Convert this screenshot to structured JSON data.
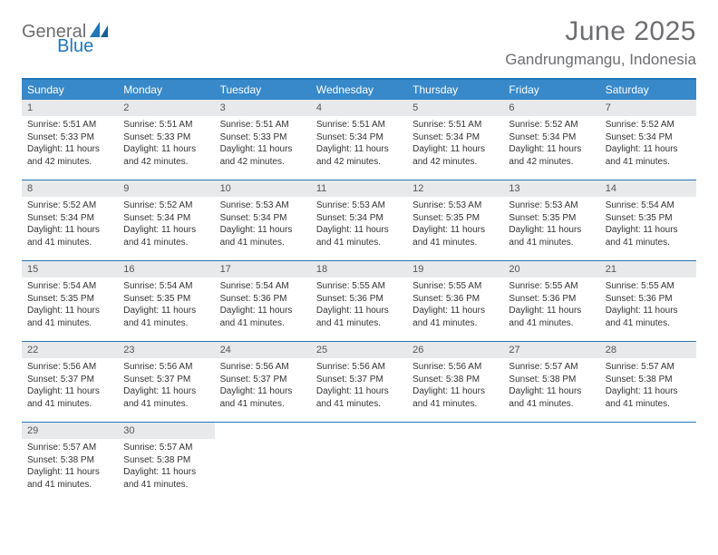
{
  "logo": {
    "part1": "General",
    "part2": "Blue"
  },
  "title": "June 2025",
  "location": "Gandrungmangu, Indonesia",
  "colors": {
    "header_bg": "#3789c9",
    "rule": "#2176b8",
    "daynum_bg": "#e8e9ea",
    "text_muted": "#6d6e71",
    "text_body": "#333333",
    "page_bg": "#ffffff"
  },
  "weekdays": [
    "Sunday",
    "Monday",
    "Tuesday",
    "Wednesday",
    "Thursday",
    "Friday",
    "Saturday"
  ],
  "days": [
    {
      "n": "1",
      "sunrise": "5:51 AM",
      "sunset": "5:33 PM",
      "daylight": "11 hours and 42 minutes."
    },
    {
      "n": "2",
      "sunrise": "5:51 AM",
      "sunset": "5:33 PM",
      "daylight": "11 hours and 42 minutes."
    },
    {
      "n": "3",
      "sunrise": "5:51 AM",
      "sunset": "5:33 PM",
      "daylight": "11 hours and 42 minutes."
    },
    {
      "n": "4",
      "sunrise": "5:51 AM",
      "sunset": "5:34 PM",
      "daylight": "11 hours and 42 minutes."
    },
    {
      "n": "5",
      "sunrise": "5:51 AM",
      "sunset": "5:34 PM",
      "daylight": "11 hours and 42 minutes."
    },
    {
      "n": "6",
      "sunrise": "5:52 AM",
      "sunset": "5:34 PM",
      "daylight": "11 hours and 42 minutes."
    },
    {
      "n": "7",
      "sunrise": "5:52 AM",
      "sunset": "5:34 PM",
      "daylight": "11 hours and 41 minutes."
    },
    {
      "n": "8",
      "sunrise": "5:52 AM",
      "sunset": "5:34 PM",
      "daylight": "11 hours and 41 minutes."
    },
    {
      "n": "9",
      "sunrise": "5:52 AM",
      "sunset": "5:34 PM",
      "daylight": "11 hours and 41 minutes."
    },
    {
      "n": "10",
      "sunrise": "5:53 AM",
      "sunset": "5:34 PM",
      "daylight": "11 hours and 41 minutes."
    },
    {
      "n": "11",
      "sunrise": "5:53 AM",
      "sunset": "5:34 PM",
      "daylight": "11 hours and 41 minutes."
    },
    {
      "n": "12",
      "sunrise": "5:53 AM",
      "sunset": "5:35 PM",
      "daylight": "11 hours and 41 minutes."
    },
    {
      "n": "13",
      "sunrise": "5:53 AM",
      "sunset": "5:35 PM",
      "daylight": "11 hours and 41 minutes."
    },
    {
      "n": "14",
      "sunrise": "5:54 AM",
      "sunset": "5:35 PM",
      "daylight": "11 hours and 41 minutes."
    },
    {
      "n": "15",
      "sunrise": "5:54 AM",
      "sunset": "5:35 PM",
      "daylight": "11 hours and 41 minutes."
    },
    {
      "n": "16",
      "sunrise": "5:54 AM",
      "sunset": "5:35 PM",
      "daylight": "11 hours and 41 minutes."
    },
    {
      "n": "17",
      "sunrise": "5:54 AM",
      "sunset": "5:36 PM",
      "daylight": "11 hours and 41 minutes."
    },
    {
      "n": "18",
      "sunrise": "5:55 AM",
      "sunset": "5:36 PM",
      "daylight": "11 hours and 41 minutes."
    },
    {
      "n": "19",
      "sunrise": "5:55 AM",
      "sunset": "5:36 PM",
      "daylight": "11 hours and 41 minutes."
    },
    {
      "n": "20",
      "sunrise": "5:55 AM",
      "sunset": "5:36 PM",
      "daylight": "11 hours and 41 minutes."
    },
    {
      "n": "21",
      "sunrise": "5:55 AM",
      "sunset": "5:36 PM",
      "daylight": "11 hours and 41 minutes."
    },
    {
      "n": "22",
      "sunrise": "5:56 AM",
      "sunset": "5:37 PM",
      "daylight": "11 hours and 41 minutes."
    },
    {
      "n": "23",
      "sunrise": "5:56 AM",
      "sunset": "5:37 PM",
      "daylight": "11 hours and 41 minutes."
    },
    {
      "n": "24",
      "sunrise": "5:56 AM",
      "sunset": "5:37 PM",
      "daylight": "11 hours and 41 minutes."
    },
    {
      "n": "25",
      "sunrise": "5:56 AM",
      "sunset": "5:37 PM",
      "daylight": "11 hours and 41 minutes."
    },
    {
      "n": "26",
      "sunrise": "5:56 AM",
      "sunset": "5:38 PM",
      "daylight": "11 hours and 41 minutes."
    },
    {
      "n": "27",
      "sunrise": "5:57 AM",
      "sunset": "5:38 PM",
      "daylight": "11 hours and 41 minutes."
    },
    {
      "n": "28",
      "sunrise": "5:57 AM",
      "sunset": "5:38 PM",
      "daylight": "11 hours and 41 minutes."
    },
    {
      "n": "29",
      "sunrise": "5:57 AM",
      "sunset": "5:38 PM",
      "daylight": "11 hours and 41 minutes."
    },
    {
      "n": "30",
      "sunrise": "5:57 AM",
      "sunset": "5:38 PM",
      "daylight": "11 hours and 41 minutes."
    }
  ],
  "labels": {
    "sunrise": "Sunrise:",
    "sunset": "Sunset:",
    "daylight": "Daylight:"
  },
  "layout": {
    "start_weekday": 0,
    "cols": 7
  }
}
